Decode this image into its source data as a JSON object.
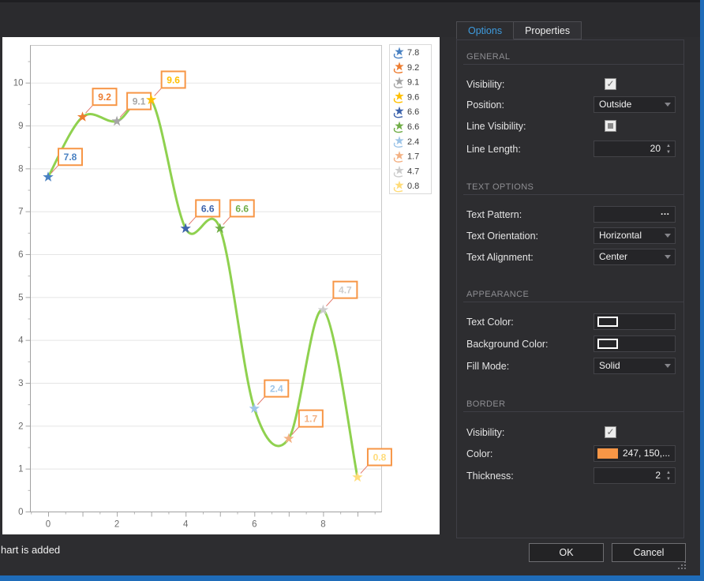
{
  "window": {
    "status_text": "hart is added",
    "accent_color": "#1f6cb9"
  },
  "icons": {
    "check": "✓",
    "ellipsis": "…",
    "spin_up": "▲",
    "spin_down": "▼"
  },
  "tabs": [
    {
      "label": "Options",
      "active": true
    },
    {
      "label": "Properties",
      "active": false
    }
  ],
  "panel": {
    "sections": [
      {
        "title": "GENERAL",
        "rows": [
          {
            "label": "Visibility:",
            "type": "checkbox",
            "state": "checked"
          },
          {
            "label": "Position:",
            "type": "dropdown",
            "value": "Outside"
          },
          {
            "label": "Line Visibility:",
            "type": "checkbox",
            "state": "indeterminate"
          },
          {
            "label": "Line Length:",
            "type": "spinner",
            "value": "20"
          }
        ]
      },
      {
        "title": "TEXT OPTIONS",
        "rows": [
          {
            "label": "Text Pattern:",
            "type": "ellipsis-field",
            "value": ""
          },
          {
            "label": "Text Orientation:",
            "type": "dropdown",
            "value": "Horizontal"
          },
          {
            "label": "Text Alignment:",
            "type": "dropdown",
            "value": "Center"
          }
        ]
      },
      {
        "title": "APPEARANCE",
        "rows": [
          {
            "label": "Text Color:",
            "type": "color-swatch",
            "value": "",
            "swatch": "empty"
          },
          {
            "label": "Background Color:",
            "type": "color-swatch",
            "value": "",
            "swatch": "empty"
          },
          {
            "label": "Fill Mode:",
            "type": "dropdown",
            "value": "Solid"
          }
        ]
      },
      {
        "title": "BORDER",
        "rows": [
          {
            "label": "Visibility:",
            "type": "checkbox",
            "state": "checked"
          },
          {
            "label": "Color:",
            "type": "color-swatch",
            "value": "247, 150,...",
            "swatch": "#F79646"
          },
          {
            "label": "Thickness:",
            "type": "spinner",
            "value": "2"
          }
        ]
      }
    ]
  },
  "buttons": {
    "ok": "OK",
    "cancel": "Cancel"
  },
  "chart_data": {
    "type": "line",
    "x": [
      0,
      1,
      2,
      3,
      4,
      5,
      6,
      7,
      8,
      9
    ],
    "values": [
      7.8,
      9.2,
      9.1,
      9.6,
      6.6,
      6.6,
      2.4,
      1.7,
      4.7,
      0.8
    ],
    "point_labels": [
      "7.8",
      "9.2",
      "9.1",
      "9.6",
      "6.6",
      "6.6",
      "2.4",
      "1.7",
      "4.7",
      "0.8"
    ],
    "point_colors": [
      "#4981C2",
      "#ED7D31",
      "#A5A5A5",
      "#FFC000",
      "#3D63AC",
      "#70AD47",
      "#9EC5E8",
      "#F3B183",
      "#CCCCCC",
      "#FFDC7A"
    ],
    "legend": [
      "7.8",
      "9.2",
      "9.1",
      "9.6",
      "6.6",
      "6.6",
      "2.4",
      "1.7",
      "4.7",
      "0.8"
    ],
    "legend_position": "right",
    "line_color": "#8FD14F",
    "marker_shape": "star",
    "label_border_color": "#F79646",
    "label_border_thickness": 2,
    "label_bg": "#FFFFFF",
    "callout_color": "#E2776B",
    "grid": true,
    "x_major_ticks": [
      0,
      1,
      2,
      3,
      4,
      5,
      6,
      7,
      8,
      9
    ],
    "x_tick_labels": [
      0,
      2,
      4,
      6,
      8
    ],
    "y_ticks": [
      0,
      1,
      2,
      3,
      4,
      5,
      6,
      7,
      8,
      9,
      10
    ],
    "xlim": [
      -0.52,
      9.7
    ],
    "ylim": [
      0,
      10.88
    ],
    "title": "",
    "xlabel": "",
    "ylabel": ""
  }
}
